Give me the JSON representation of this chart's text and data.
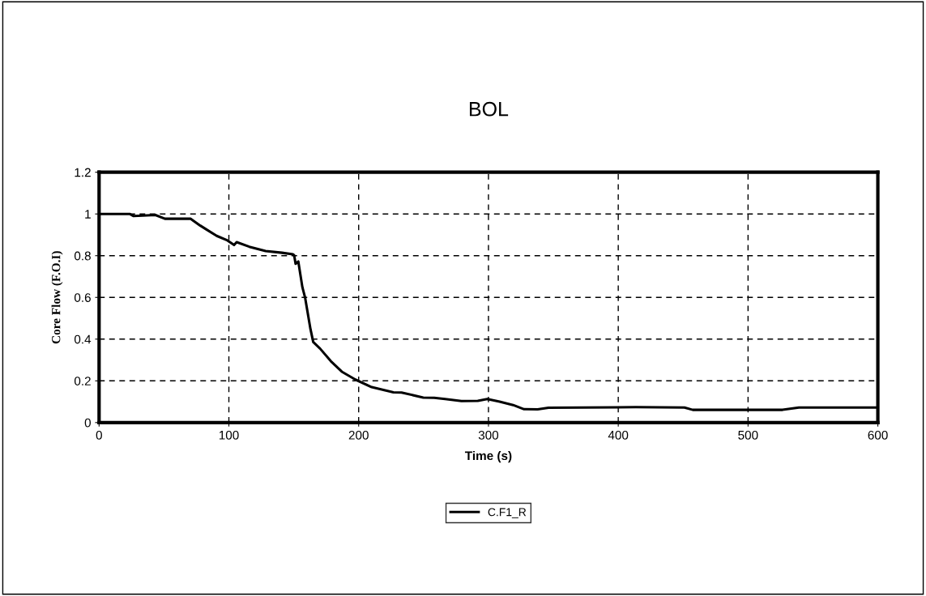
{
  "chart_data": {
    "type": "line",
    "title": "BOL",
    "xlabel": "Time (s)",
    "ylabel": "Core Flow (F.O.I)",
    "xlim": [
      0,
      600
    ],
    "xticks": [
      0,
      100,
      200,
      300,
      400,
      500,
      600
    ],
    "ylim": [
      0,
      1.2
    ],
    "yticks": [
      0,
      0.2,
      0.4,
      0.6,
      0.8,
      1,
      1.2
    ],
    "grid": true,
    "legend": "bottom",
    "line_style": "solid",
    "marker": "none",
    "series": [
      {
        "name": "C.F1_R",
        "color": "#000000",
        "x": [
          0,
          23.5,
          26.6,
          43.4,
          50.7,
          70.6,
          78,
          90.6,
          98.9,
          104,
          106,
          115.7,
          128.3,
          140.9,
          149.3,
          150.3,
          151.4,
          153.5,
          156.6,
          158.7,
          162.9,
          165,
          170.2,
          178.6,
          187,
          197.5,
          210,
          226.8,
          233,
          249.8,
          258.2,
          266.6,
          279.2,
          291.8,
          299.1,
          308.6,
          319,
          327.4,
          337.9,
          346.3,
          413.4,
          451,
          457.4,
          526.6,
          539.2,
          600
        ],
        "values": [
          1.0,
          1.0,
          0.99,
          0.995,
          0.977,
          0.977,
          0.944,
          0.895,
          0.873,
          0.851,
          0.865,
          0.843,
          0.822,
          0.814,
          0.807,
          0.802,
          0.761,
          0.772,
          0.65,
          0.6,
          0.447,
          0.386,
          0.355,
          0.294,
          0.244,
          0.206,
          0.17,
          0.145,
          0.144,
          0.12,
          0.119,
          0.113,
          0.103,
          0.104,
          0.113,
          0.1,
          0.084,
          0.064,
          0.063,
          0.071,
          0.074,
          0.072,
          0.061,
          0.061,
          0.072,
          0.072
        ]
      }
    ]
  }
}
